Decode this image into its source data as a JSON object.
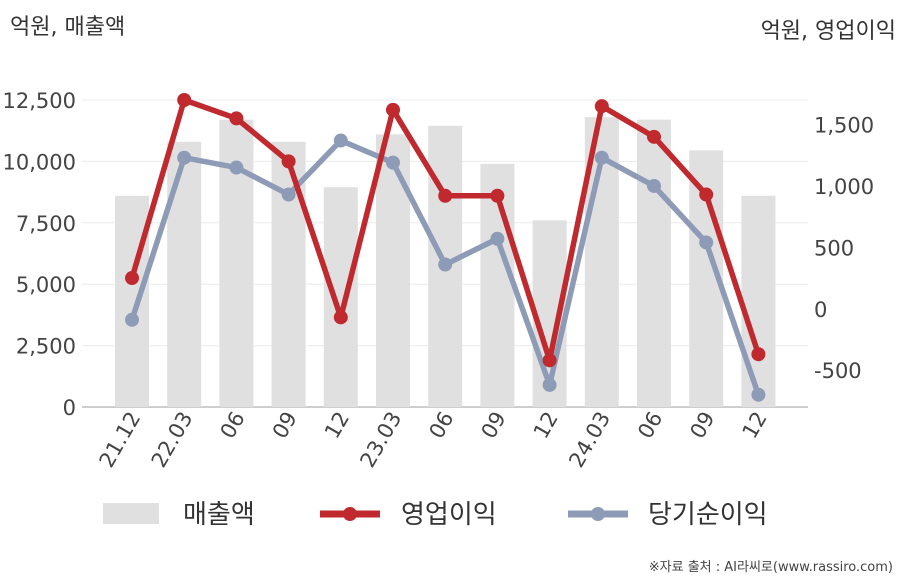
{
  "chart_data": {
    "type": "bar",
    "categories": [
      "21.12",
      "22.03",
      "06",
      "09",
      "12",
      "23.03",
      "06",
      "09",
      "12",
      "24.03",
      "06",
      "09",
      "12"
    ],
    "left_axis": {
      "unit_label": "억원, 매출액",
      "ylim": [
        0,
        12500
      ],
      "ticks": [
        0,
        2500,
        5000,
        7500,
        10000,
        12500
      ],
      "tick_labels": [
        "0",
        "2,500",
        "5,000",
        "7,500",
        "10,000",
        "12,500"
      ]
    },
    "right_axis": {
      "unit_label": "억원, 영업이익",
      "ylim": [
        -800,
        1700
      ],
      "ticks": [
        -500,
        0,
        500,
        1000,
        1500
      ],
      "tick_labels": [
        "-500",
        "0",
        "500",
        "1,000",
        "1,500"
      ]
    },
    "series": [
      {
        "name": "매출액",
        "type": "bar",
        "axis": "left",
        "color": "#e0e0e0",
        "values": [
          8600,
          10800,
          11700,
          10800,
          8950,
          11100,
          11450,
          9900,
          7600,
          11800,
          11700,
          10450,
          8600
        ]
      },
      {
        "name": "영업이익",
        "type": "line",
        "axis": "right",
        "color": "#c0292e",
        "values": [
          250,
          1700,
          1550,
          1200,
          -70,
          1620,
          920,
          920,
          -420,
          1650,
          1400,
          930,
          -370
        ]
      },
      {
        "name": "당기순이익",
        "type": "line",
        "axis": "right",
        "color": "#8e9bb7",
        "values": [
          -90,
          1230,
          1150,
          930,
          1370,
          1190,
          360,
          570,
          -620,
          1230,
          1000,
          540,
          -700
        ]
      }
    ],
    "grid": true,
    "legend": "bottom"
  },
  "source_text": "※자료 출처 : AI라씨로(www.rassiro.com)"
}
